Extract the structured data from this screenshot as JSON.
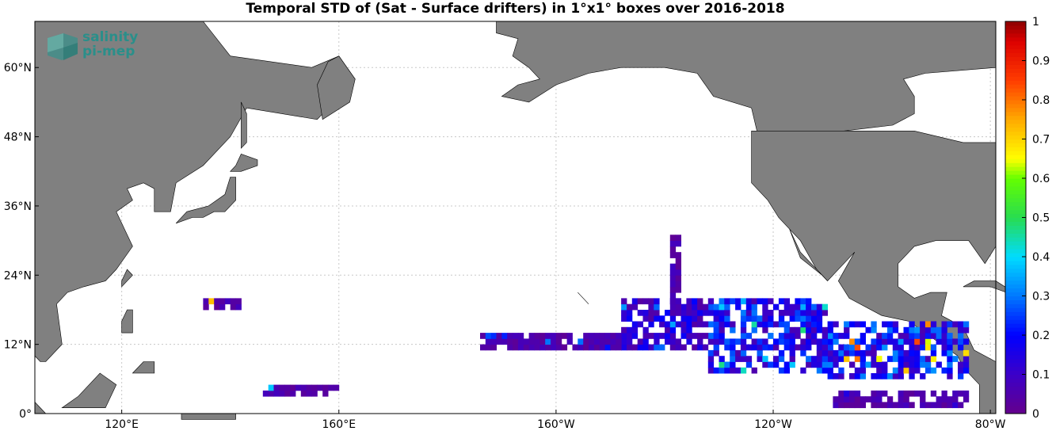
{
  "title": "Temporal STD of (Sat - Surface drifters) in 1°x1° boxes over 2016-2018",
  "logo": {
    "line1": "salinity",
    "line2": "pi-mep"
  },
  "map": {
    "lon_range": [
      104,
      281
    ],
    "lat_range": [
      0,
      68
    ],
    "land_color": "#808080",
    "ocean_color": "#ffffff",
    "grid": true,
    "y_ticks": [
      {
        "lat": 0,
        "label": "0°"
      },
      {
        "lat": 12,
        "label": "12°N"
      },
      {
        "lat": 24,
        "label": "24°N"
      },
      {
        "lat": 36,
        "label": "36°N"
      },
      {
        "lat": 48,
        "label": "48°N"
      },
      {
        "lat": 60,
        "label": "60°N"
      }
    ],
    "x_ticks": [
      {
        "lon": 120,
        "label": "120°E"
      },
      {
        "lon": 160,
        "label": "160°E"
      },
      {
        "lon": 200,
        "label": "160°W"
      },
      {
        "lon": 240,
        "label": "120°W"
      },
      {
        "lon": 280,
        "label": "80°W"
      }
    ]
  },
  "colorbar": {
    "range": [
      0,
      1
    ],
    "colormap": "jet",
    "ticks": [
      "0",
      "0.1",
      "0.2",
      "0.3",
      "0.4",
      "0.5",
      "0.6",
      "0.7",
      "0.8",
      "0.9",
      "1"
    ]
  },
  "chart_data": {
    "type": "heatmap",
    "title": "Temporal STD of (Sat - Surface drifters) in 1°x1° boxes over 2016-2018",
    "xlabel": "",
    "ylabel": "",
    "value_range": [
      0,
      1
    ],
    "regions": [
      {
        "lon": [
          250,
          276
        ],
        "lat": [
          6,
          16
        ],
        "typical_std": 0.2,
        "peak_std": 0.9
      },
      {
        "lon": [
          228,
          250
        ],
        "lat": [
          7,
          20
        ],
        "typical_std": 0.18,
        "peak_std": 0.5
      },
      {
        "lon": [
          212,
          228
        ],
        "lat": [
          11,
          20
        ],
        "typical_std": 0.12,
        "peak_std": 0.35
      },
      {
        "lon": [
          221,
          223
        ],
        "lat": [
          17,
          31
        ],
        "typical_std": 0.05,
        "peak_std": 0.1
      },
      {
        "lon": [
          186,
          212
        ],
        "lat": [
          11,
          14
        ],
        "typical_std": 0.05,
        "peak_std": 0.3
      },
      {
        "lon": [
          135,
          142
        ],
        "lat": [
          18,
          20
        ],
        "typical_std": 0.05,
        "peak_std": 0.75
      },
      {
        "lon": [
          146,
          160
        ],
        "lat": [
          3,
          5
        ],
        "typical_std": 0.05,
        "peak_std": 0.5
      },
      {
        "lon": [
          251,
          276
        ],
        "lat": [
          1,
          4
        ],
        "typical_std": 0.05,
        "peak_std": 0.15
      }
    ]
  }
}
